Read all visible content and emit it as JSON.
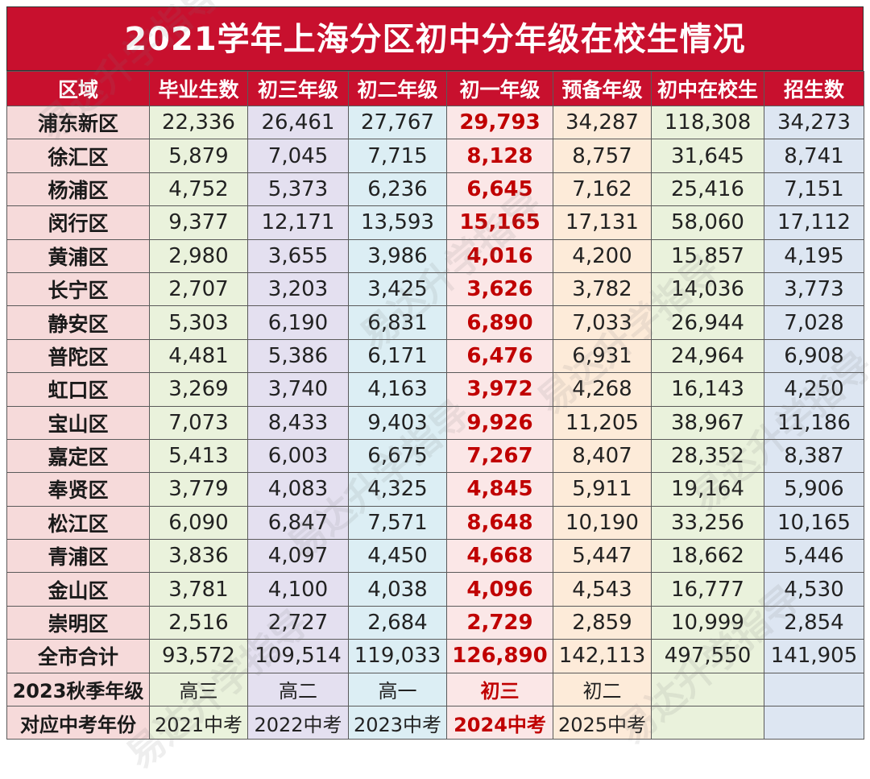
{
  "title": "2021学年上海分区初中分年级在校生情况",
  "headers": [
    "区域",
    "毕业生数",
    "初三年级",
    "初二年级",
    "初一年级",
    "预备年级",
    "初中在校生",
    "招生数"
  ],
  "rows": [
    [
      "浦东新区",
      "22,336",
      "26,461",
      "27,767",
      "29,793",
      "34,287",
      "118,308",
      "34,273"
    ],
    [
      "徐汇区",
      "5,879",
      "7,045",
      "7,715",
      "8,128",
      "8,757",
      "31,645",
      "8,741"
    ],
    [
      "杨浦区",
      "4,752",
      "5,373",
      "6,236",
      "6,645",
      "7,162",
      "25,416",
      "7,151"
    ],
    [
      "闵行区",
      "9,377",
      "12,171",
      "13,593",
      "15,165",
      "17,131",
      "58,060",
      "17,112"
    ],
    [
      "黄浦区",
      "2,980",
      "3,655",
      "3,986",
      "4,016",
      "4,200",
      "15,857",
      "4,195"
    ],
    [
      "长宁区",
      "2,707",
      "3,203",
      "3,425",
      "3,626",
      "3,782",
      "14,036",
      "3,773"
    ],
    [
      "静安区",
      "5,303",
      "6,190",
      "6,831",
      "6,890",
      "7,033",
      "26,944",
      "7,028"
    ],
    [
      "普陀区",
      "4,481",
      "5,386",
      "6,171",
      "6,476",
      "6,931",
      "24,964",
      "6,908"
    ],
    [
      "虹口区",
      "3,269",
      "3,740",
      "4,163",
      "3,972",
      "4,268",
      "16,143",
      "4,250"
    ],
    [
      "宝山区",
      "7,073",
      "8,433",
      "9,403",
      "9,926",
      "11,205",
      "38,967",
      "11,186"
    ],
    [
      "嘉定区",
      "5,413",
      "6,003",
      "6,675",
      "7,267",
      "8,407",
      "28,352",
      "8,387"
    ],
    [
      "奉贤区",
      "3,779",
      "4,083",
      "4,325",
      "4,845",
      "5,911",
      "19,164",
      "5,906"
    ],
    [
      "松江区",
      "6,090",
      "6,847",
      "7,571",
      "8,648",
      "10,190",
      "33,256",
      "10,165"
    ],
    [
      "青浦区",
      "3,836",
      "4,097",
      "4,450",
      "4,668",
      "5,447",
      "18,662",
      "5,446"
    ],
    [
      "金山区",
      "3,781",
      "4,100",
      "4,038",
      "4,096",
      "4,543",
      "16,777",
      "4,530"
    ],
    [
      "崇明区",
      "2,516",
      "2,727",
      "2,684",
      "2,729",
      "2,859",
      "10,999",
      "2,854"
    ],
    [
      "全市合计",
      "93,572",
      "109,514",
      "119,033",
      "126,890",
      "142,113",
      "497,550",
      "141,905"
    ],
    [
      "2023秋季年级",
      "高三",
      "高二",
      "高一",
      "初三",
      "初二",
      "",
      ""
    ],
    [
      "对应中考年份",
      "2021中考",
      "2022中考",
      "2023中考",
      "2024中考",
      "2025中考",
      "",
      ""
    ]
  ],
  "watermark": "易达升学指导",
  "colors": {
    "title_bg": "#c8102e",
    "highlight_text": "#c00000"
  }
}
